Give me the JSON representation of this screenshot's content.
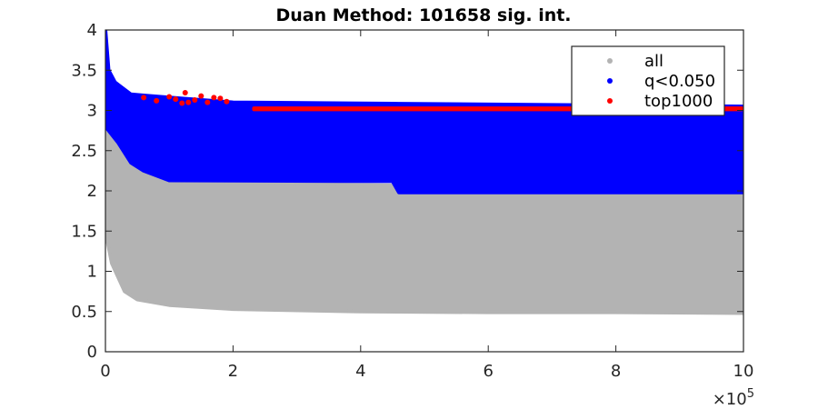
{
  "chart_data": {
    "type": "scatter",
    "title": "Duan Method: 101658 sig. int.",
    "xlabel": "",
    "ylabel": "",
    "xlim": [
      0,
      1000000
    ],
    "ylim": [
      0,
      4
    ],
    "x_ticks": [
      0,
      200000,
      400000,
      600000,
      800000,
      1000000
    ],
    "x_tick_labels": [
      "0",
      "2",
      "4",
      "6",
      "8",
      "10"
    ],
    "x_exponent_label": "×10",
    "x_exponent_power": "5",
    "y_ticks": [
      0,
      0.5,
      1,
      1.5,
      2,
      2.5,
      3,
      3.5,
      4
    ],
    "y_tick_labels": [
      "0",
      "0.5",
      "1",
      "1.5",
      "2",
      "2.5",
      "3",
      "3.5",
      "4"
    ],
    "grid": false,
    "legend_position": "top-right",
    "series": [
      {
        "name": "all",
        "color": "#b3b3b3",
        "lower_envelope": [
          [
            0,
            1.5
          ],
          [
            10000,
            1.1
          ],
          [
            30000,
            0.75
          ],
          [
            50000,
            0.65
          ],
          [
            100000,
            0.58
          ],
          [
            200000,
            0.53
          ],
          [
            400000,
            0.5
          ],
          [
            600000,
            0.49
          ],
          [
            800000,
            0.49
          ],
          [
            1000000,
            0.48
          ]
        ],
        "upper_envelope": [
          [
            0,
            3.0
          ],
          [
            20000,
            2.7
          ],
          [
            50000,
            2.4
          ],
          [
            100000,
            2.2
          ],
          [
            200000,
            2.1
          ],
          [
            600000,
            2.05
          ],
          [
            1000000,
            2.0
          ]
        ]
      },
      {
        "name": "q<0.050",
        "color": "#0000ff",
        "lower_envelope": [
          [
            0,
            2.8
          ],
          [
            20000,
            2.6
          ],
          [
            40000,
            2.35
          ],
          [
            60000,
            2.25
          ],
          [
            100000,
            2.13
          ],
          [
            450000,
            2.12
          ],
          [
            460000,
            1.98
          ],
          [
            1000000,
            1.98
          ]
        ],
        "upper_envelope": [
          [
            0,
            4.0
          ],
          [
            5000,
            3.5
          ],
          [
            15000,
            3.35
          ],
          [
            40000,
            3.2
          ],
          [
            100000,
            3.16
          ],
          [
            200000,
            3.1
          ],
          [
            1000000,
            3.05
          ]
        ]
      },
      {
        "name": "top1000",
        "color": "#ff0000",
        "points": [
          [
            60000,
            3.16
          ],
          [
            80000,
            3.12
          ],
          [
            100000,
            3.17
          ],
          [
            110000,
            3.14
          ],
          [
            120000,
            3.09
          ],
          [
            125000,
            3.22
          ],
          [
            130000,
            3.1
          ],
          [
            140000,
            3.13
          ],
          [
            150000,
            3.18
          ],
          [
            160000,
            3.1
          ],
          [
            170000,
            3.16
          ],
          [
            180000,
            3.15
          ],
          [
            190000,
            3.11
          ]
        ],
        "band": {
          "x_start": 230000,
          "x_end": 1000000,
          "y_low": 2.99,
          "y_high": 3.05
        }
      }
    ]
  }
}
